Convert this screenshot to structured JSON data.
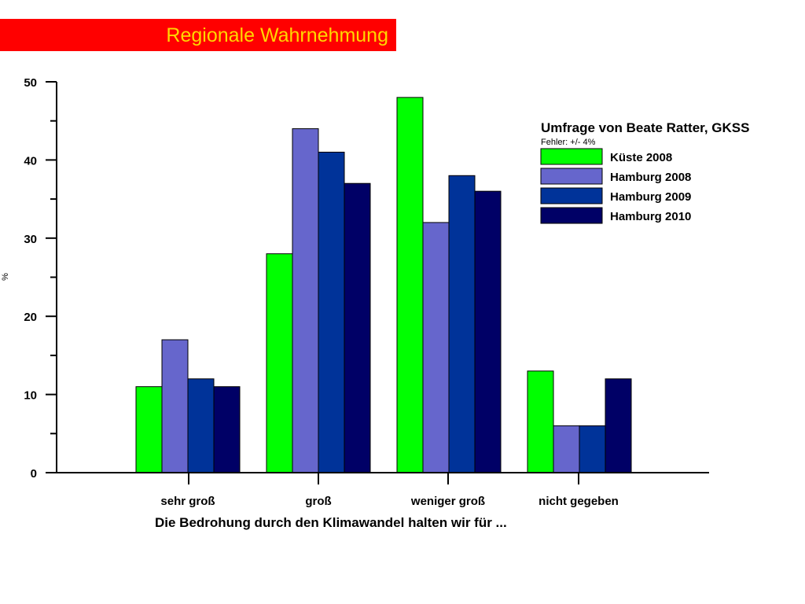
{
  "header": {
    "title": "Regionale Wahrnehmung"
  },
  "chart_data": {
    "type": "bar",
    "xlabel": "Die Bedrohung durch den Klimawandel halten wir für ...",
    "ylabel": "%",
    "ylim": [
      0,
      50
    ],
    "yticks": [
      0,
      10,
      20,
      30,
      40,
      50
    ],
    "grid": false,
    "categories": [
      "sehr groß",
      "groß",
      "weniger groß",
      "nicht gegeben"
    ],
    "legend": {
      "title": "Umfrage von Beate Ratter, GKSS",
      "subtitle": "Fehler: +/- 4%",
      "placement": "top-right"
    },
    "series": [
      {
        "name": "Küste 2008",
        "color": "#00ff00",
        "values": [
          11,
          28,
          48,
          13
        ]
      },
      {
        "name": "Hamburg 2008",
        "color": "#6666cc",
        "values": [
          17,
          44,
          32,
          6
        ]
      },
      {
        "name": "Hamburg 2009",
        "color": "#003399",
        "values": [
          12,
          41,
          38,
          6
        ]
      },
      {
        "name": "Hamburg 2010",
        "color": "#000066",
        "values": [
          11,
          37,
          36,
          12
        ]
      }
    ]
  }
}
